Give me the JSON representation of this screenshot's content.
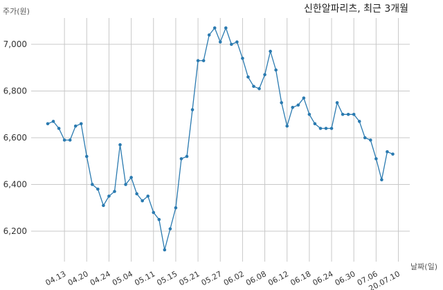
{
  "chart_data": {
    "type": "line",
    "title": "신한알파리츠, 최근 3개월",
    "ylabel": "주가(원)",
    "xlabel": "날짜(일)",
    "ylim": [
      6080,
      7130
    ],
    "yticks": [
      6200,
      6400,
      6600,
      6800,
      7000
    ],
    "ytick_labels": [
      "6,200",
      "6,400",
      "6,600",
      "6,800",
      "7,000"
    ],
    "xtick_labels": [
      "04.13",
      "04.20",
      "04.24",
      "05.04",
      "05.11",
      "05.15",
      "05.21",
      "05.27",
      "06.02",
      "06.08",
      "06.12",
      "06.18",
      "06.24",
      "06.30",
      "07.06",
      "20.07.10"
    ],
    "xtick_index": [
      3,
      7,
      11,
      15,
      19,
      23,
      27,
      31,
      35,
      39,
      43,
      47,
      51,
      55,
      59,
      63
    ],
    "grid": true,
    "series": [
      {
        "values": [
          6660,
          6670,
          6640,
          6590,
          6590,
          6650,
          6660,
          6520,
          6400,
          6380,
          6310,
          6350,
          6370,
          6570,
          6400,
          6430,
          6360,
          6330,
          6350,
          6280,
          6250,
          6120,
          6210,
          6300,
          6510,
          6520,
          6720,
          6930,
          6930,
          7040,
          7070,
          7010,
          7070,
          7000,
          7010,
          6940,
          6860,
          6820,
          6810,
          6870,
          6970,
          6890,
          6750,
          6650,
          6730,
          6740,
          6770,
          6700,
          6660,
          6640,
          6640,
          6640,
          6750,
          6700,
          6700,
          6700,
          6670,
          6600,
          6590,
          6510,
          6420,
          6540,
          6530
        ]
      }
    ],
    "colors": {
      "line": "#2a7ab0",
      "grid": "#c8c8c8"
    }
  }
}
